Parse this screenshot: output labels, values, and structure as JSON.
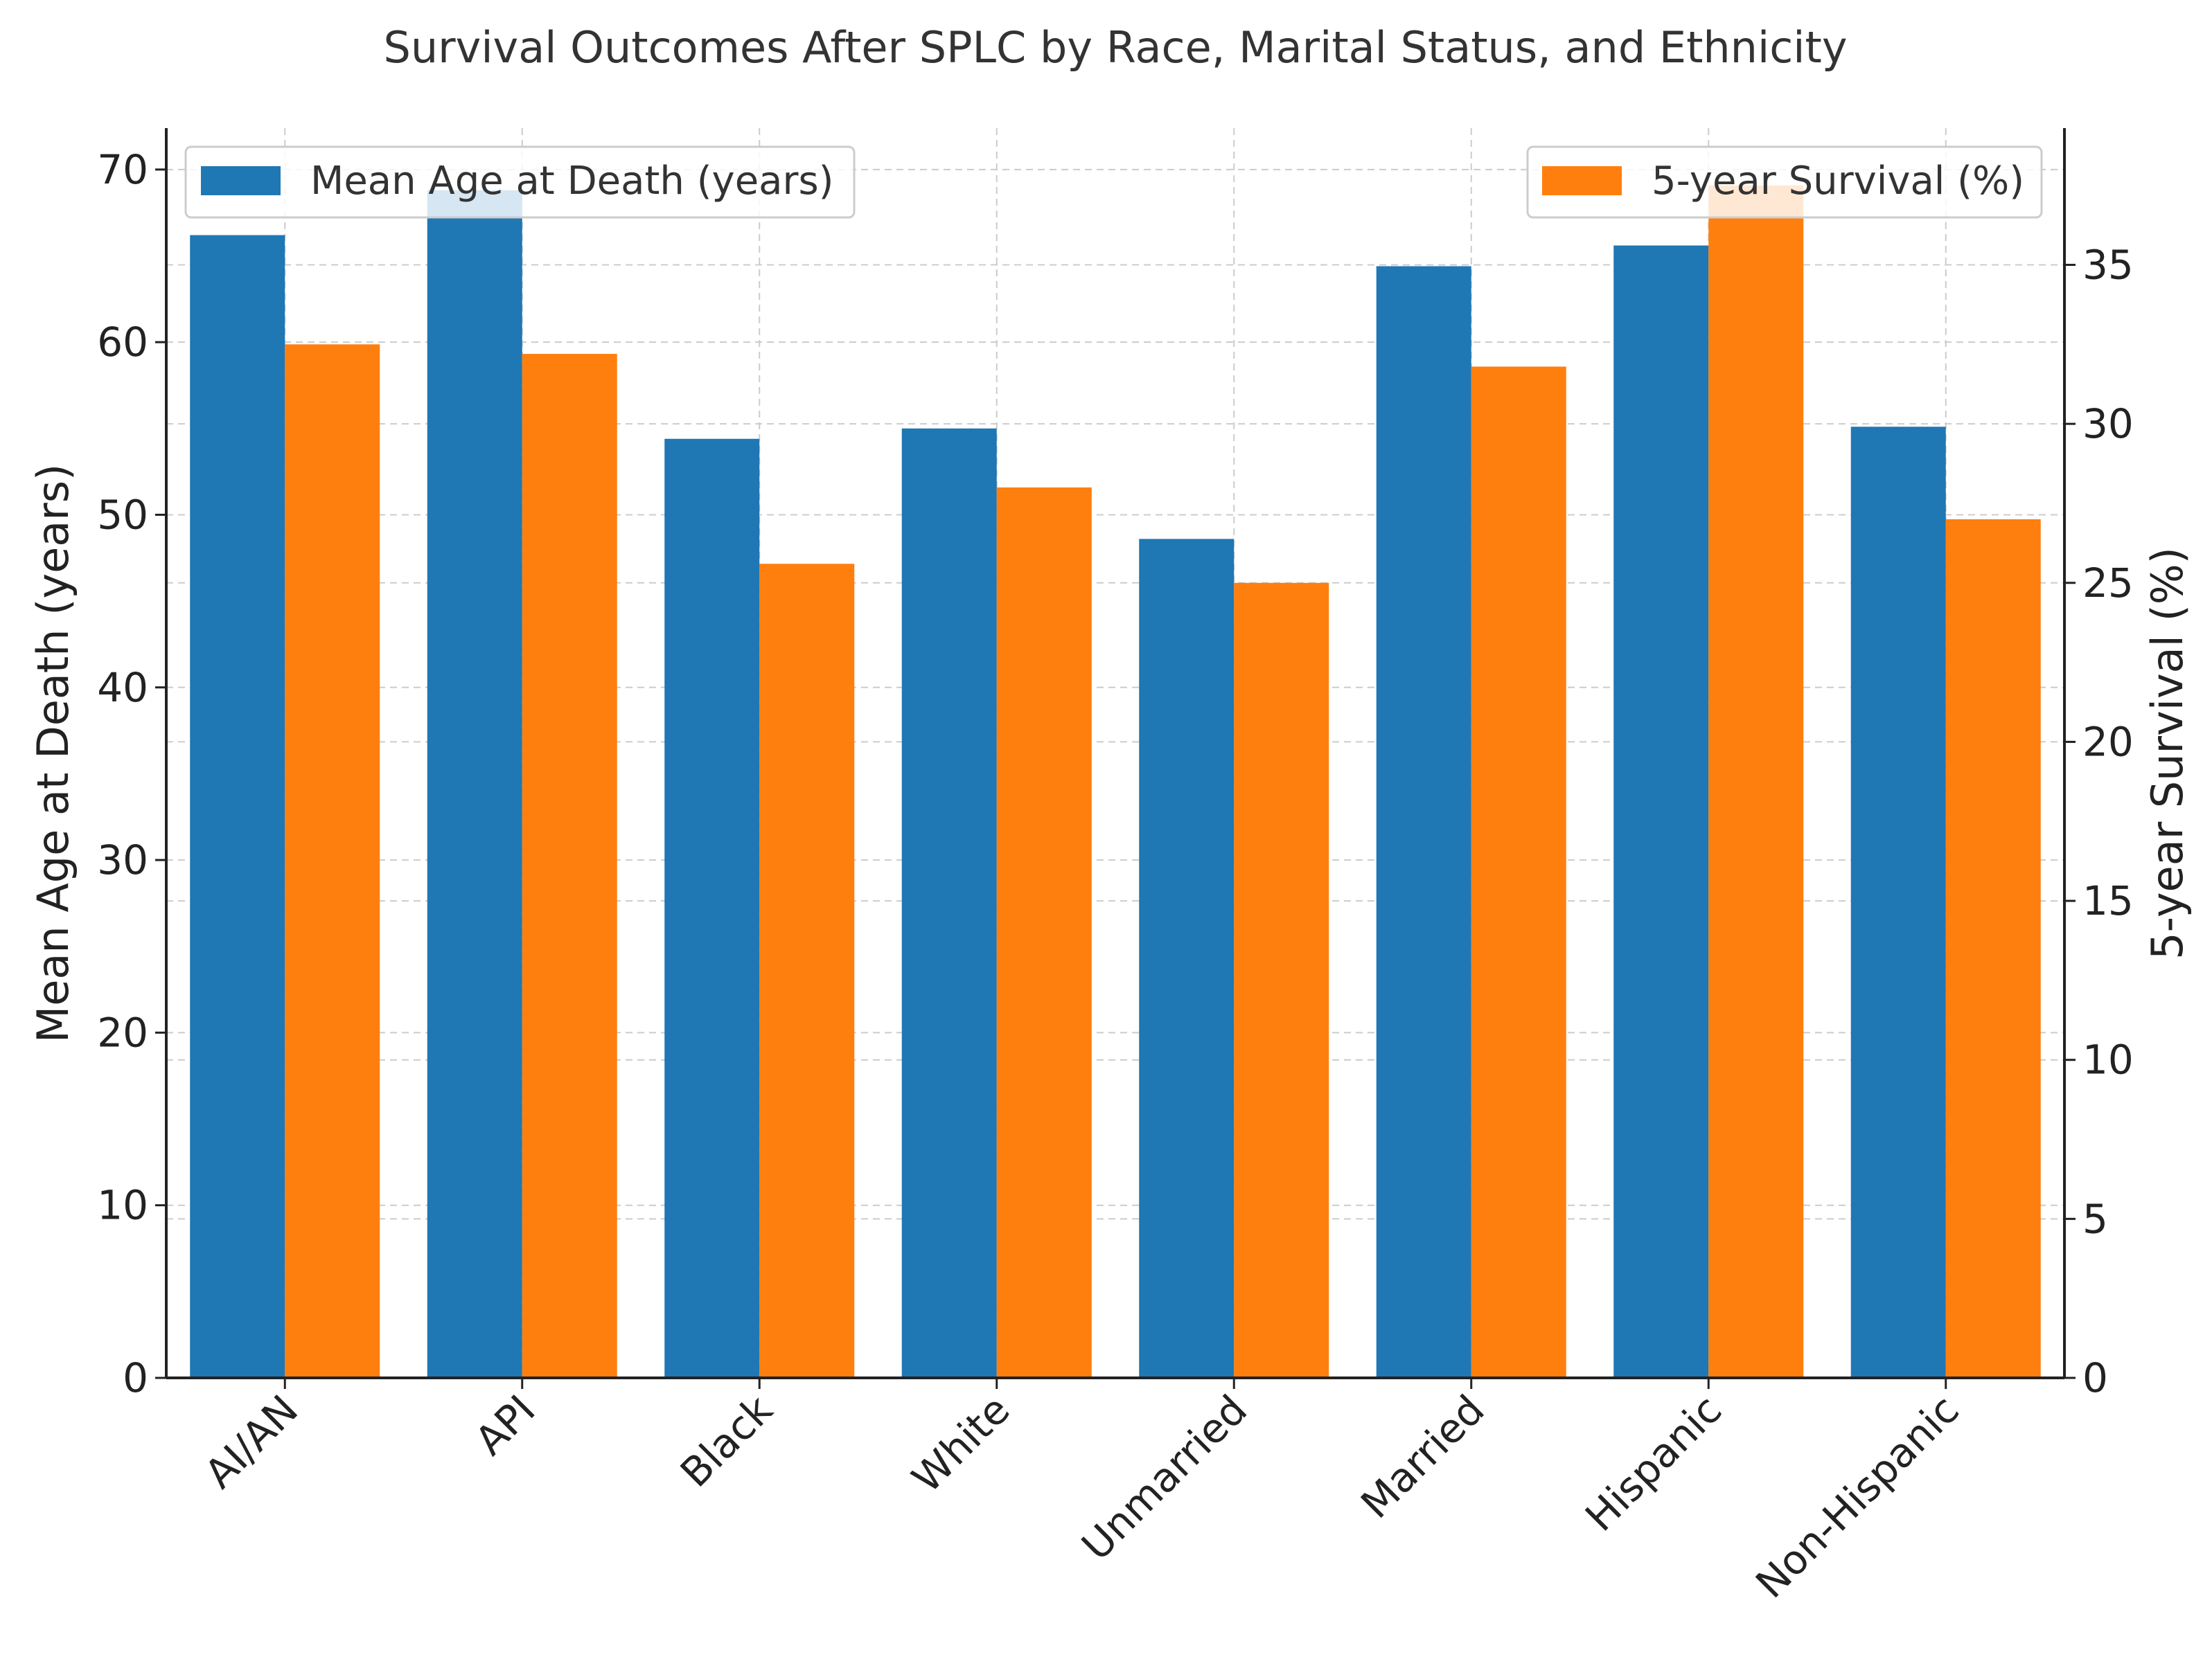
{
  "chart_data": {
    "type": "bar",
    "title": "Survival Outcomes After SPLC by Race, Marital Status, and Ethnicity",
    "categories": [
      "AI/AN",
      "API",
      "Black",
      "White",
      "Unmarried",
      "Married",
      "Hispanic",
      "Non-Hispanic"
    ],
    "series": [
      {
        "name": "Mean Age at Death (years)",
        "axis": "left",
        "color": "#1f77b4",
        "values": [
          66.2,
          68.8,
          54.4,
          55.0,
          48.6,
          64.4,
          65.6,
          55.1
        ]
      },
      {
        "name": "5-year Survival (%)",
        "axis": "right",
        "color": "#ff7f0e",
        "values": [
          32.5,
          32.2,
          25.6,
          28.0,
          25.0,
          31.8,
          37.5,
          27.0
        ]
      }
    ],
    "ylabel_left": "Mean Age at Death (years)",
    "ylabel_right": "5-year Survival (%)",
    "ylim_left": [
      0,
      72.4
    ],
    "ylim_right": [
      0,
      39.3
    ],
    "yticks_left": [
      0,
      10,
      20,
      30,
      40,
      50,
      60,
      70
    ],
    "yticks_right": [
      0,
      5,
      10,
      15,
      20,
      25,
      30,
      35
    ],
    "grid": true,
    "legend_left_position": "top-left",
    "legend_right_position": "top-right"
  }
}
